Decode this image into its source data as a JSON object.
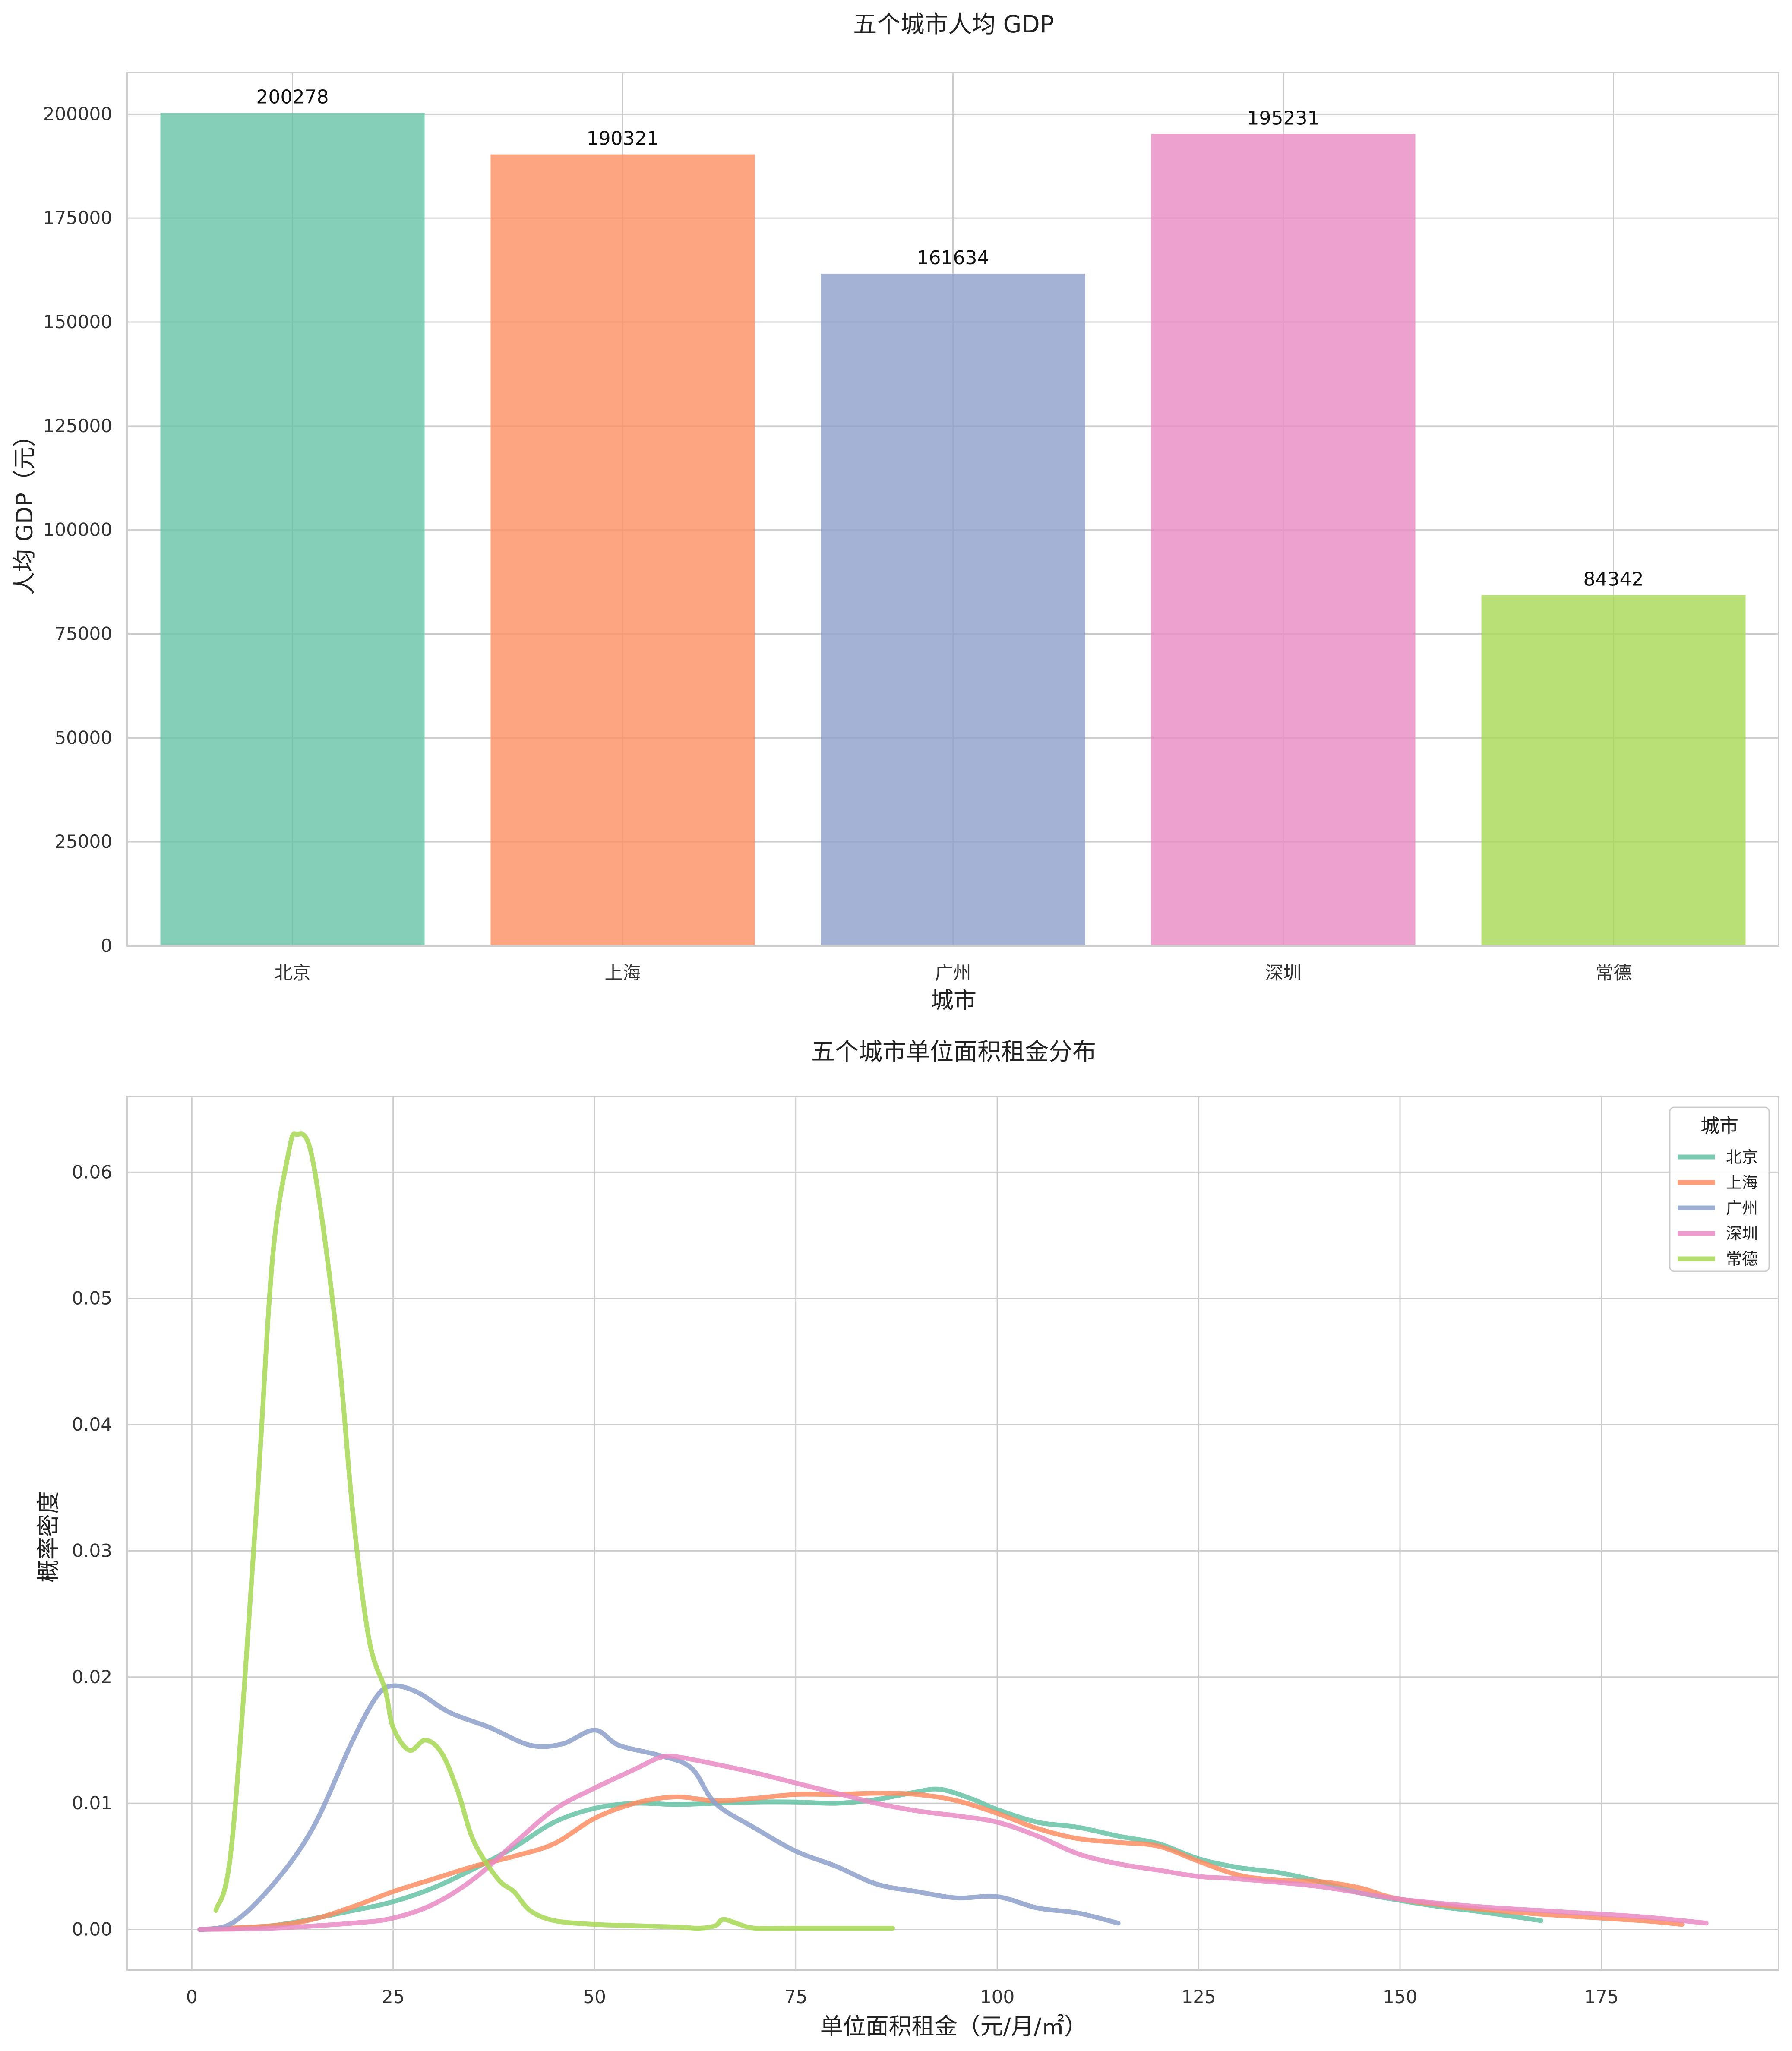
{
  "chart_data": [
    {
      "type": "bar",
      "title": "五个城市人均 GDP",
      "xlabel": "城市",
      "ylabel": "人均 GDP（元）",
      "categories": [
        "北京",
        "上海",
        "广州",
        "深圳",
        "常德"
      ],
      "values": [
        200278,
        190321,
        161634,
        195231,
        84342
      ],
      "value_labels": [
        "200278",
        "190321",
        "161634",
        "195231",
        "84342"
      ],
      "colors": [
        "#66c2a5",
        "#fc8d62",
        "#8da0cb",
        "#e78ac3",
        "#a6d854"
      ],
      "ylim": [
        0,
        210000
      ],
      "yticks": [
        0,
        25000,
        50000,
        75000,
        100000,
        125000,
        150000,
        175000,
        200000
      ],
      "grid": true
    },
    {
      "type": "line",
      "title": "五个城市单位面积租金分布",
      "xlabel": "单位面积租金（元/月/㎡）",
      "ylabel": "概率密度",
      "xlim": [
        -8,
        197
      ],
      "ylim": [
        -0.0032,
        0.066
      ],
      "xticks": [
        0,
        25,
        50,
        75,
        100,
        125,
        150,
        175
      ],
      "yticks": [
        0.0,
        0.01,
        0.02,
        0.03,
        0.04,
        0.05,
        0.06
      ],
      "ytick_labels": [
        "0.00",
        "0.01",
        "0.02",
        "0.03",
        "0.04",
        "0.05",
        "0.06"
      ],
      "grid": true,
      "legend": {
        "title": "城市",
        "position": "top-right"
      },
      "series": [
        {
          "name": "北京",
          "color": "#66c2a5",
          "x": [
            1,
            10,
            20,
            25,
            30,
            35,
            40,
            45,
            50,
            55,
            60,
            65,
            70,
            75,
            80,
            85,
            90,
            93,
            97,
            100,
            105,
            110,
            115,
            120,
            125,
            130,
            135,
            140,
            145,
            150,
            155,
            160,
            167.5
          ],
          "y": [
            0,
            0.0003,
            0.0015,
            0.0022,
            0.0033,
            0.0048,
            0.0065,
            0.0085,
            0.0096,
            0.01,
            0.0099,
            0.01,
            0.0101,
            0.0101,
            0.01,
            0.0103,
            0.0109,
            0.0111,
            0.0103,
            0.0095,
            0.0085,
            0.0081,
            0.0074,
            0.0068,
            0.0056,
            0.0049,
            0.0045,
            0.0038,
            0.0029,
            0.0023,
            0.0018,
            0.0014,
            0.0007
          ]
        },
        {
          "name": "上海",
          "color": "#fc8d62",
          "x": [
            1,
            10,
            15,
            20,
            25,
            30,
            35,
            40,
            45,
            50,
            55,
            60,
            65,
            70,
            75,
            80,
            85,
            90,
            95,
            100,
            105,
            110,
            115,
            120,
            125,
            130,
            135,
            140,
            145,
            150,
            160,
            170,
            180,
            185
          ],
          "y": [
            0,
            0.0003,
            0.0008,
            0.0018,
            0.003,
            0.004,
            0.005,
            0.0058,
            0.0068,
            0.0088,
            0.01,
            0.0105,
            0.0102,
            0.0104,
            0.0107,
            0.0107,
            0.0108,
            0.0107,
            0.0102,
            0.0092,
            0.008,
            0.0072,
            0.0069,
            0.0066,
            0.0054,
            0.0043,
            0.0039,
            0.0038,
            0.0033,
            0.0024,
            0.0016,
            0.0011,
            0.0007,
            0.0004
          ]
        },
        {
          "name": "广州",
          "color": "#8da0cb",
          "x": [
            1,
            5,
            10,
            15,
            20,
            23,
            25,
            28,
            32,
            37,
            42,
            46,
            50,
            53,
            58,
            62,
            65,
            70,
            75,
            80,
            85,
            90,
            95,
            100,
            105,
            110,
            115
          ],
          "y": [
            0,
            0.0005,
            0.0035,
            0.008,
            0.015,
            0.0185,
            0.0193,
            0.0188,
            0.0172,
            0.016,
            0.0146,
            0.0147,
            0.0158,
            0.0146,
            0.0138,
            0.0128,
            0.01,
            0.008,
            0.0062,
            0.005,
            0.0036,
            0.003,
            0.0025,
            0.0026,
            0.0017,
            0.0013,
            0.0005
          ]
        },
        {
          "name": "深圳",
          "color": "#e78ac3",
          "x": [
            1,
            10,
            20,
            25,
            30,
            35,
            40,
            45,
            50,
            55,
            58,
            60,
            65,
            70,
            75,
            80,
            85,
            90,
            95,
            100,
            105,
            110,
            115,
            120,
            125,
            130,
            140,
            150,
            160,
            170,
            180,
            188
          ],
          "y": [
            0,
            0.0001,
            0.0005,
            0.0009,
            0.002,
            0.004,
            0.0068,
            0.0095,
            0.0112,
            0.0127,
            0.0136,
            0.0137,
            0.0131,
            0.0124,
            0.0116,
            0.0108,
            0.01,
            0.0094,
            0.009,
            0.0085,
            0.0074,
            0.006,
            0.0052,
            0.0047,
            0.0042,
            0.004,
            0.0034,
            0.0024,
            0.0018,
            0.0014,
            0.001,
            0.0005
          ]
        },
        {
          "name": "常德",
          "color": "#a6d854",
          "x": [
            3,
            5,
            8,
            10,
            12,
            13,
            15,
            18,
            20,
            22,
            24,
            25,
            27,
            29,
            31,
            33,
            35,
            38,
            40,
            42,
            45,
            50,
            55,
            60,
            63,
            65,
            66,
            68,
            70,
            75,
            80,
            87
          ],
          "y": [
            0.0015,
            0.007,
            0.033,
            0.053,
            0.0615,
            0.063,
            0.061,
            0.047,
            0.033,
            0.023,
            0.019,
            0.016,
            0.0142,
            0.015,
            0.014,
            0.011,
            0.007,
            0.004,
            0.003,
            0.0015,
            0.0007,
            0.0004,
            0.0003,
            0.0002,
            0.0001,
            0.0003,
            0.0008,
            0.0004,
            0.0001,
            0.0001,
            0.0001,
            0.0001
          ]
        }
      ]
    }
  ]
}
